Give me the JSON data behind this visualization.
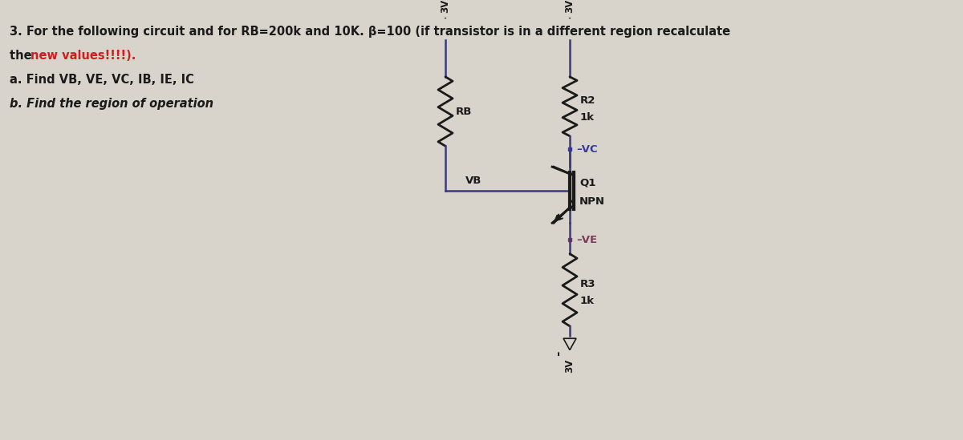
{
  "bg_color": "#d8d4cc",
  "circuit_color": "#3a3a7a",
  "resistor_color": "#1a1a1a",
  "node_color_vc": "#3a3a9a",
  "node_color_ve": "#7a3a5a",
  "text_color": "#1a1a1a",
  "new_values_color": "#cc2020",
  "title_line1": "3. For the following circuit and for RB=200k and 10K. β=100 (if transistor is in a different region recalculate",
  "title_line2_pre": "the ",
  "title_line2_red": "new values!!!!).",
  "title_line3": "a. Find VB, VE, VC, IB, IE, IC",
  "title_line4": "b. Find the region of operation",
  "lw_wire": 1.8,
  "lw_res": 2.0,
  "lw_transistor": 2.0
}
